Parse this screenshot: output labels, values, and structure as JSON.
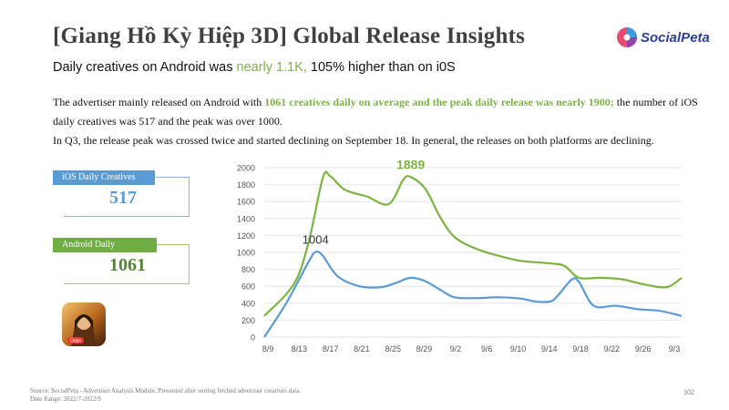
{
  "header": {
    "title": "[Giang Hồ Kỳ Hiệp 3D] Global Release Insights",
    "logo_text": "SocialPeta"
  },
  "subtitle": {
    "before": "Daily creatives on Android was ",
    "highlight": "nearly 1.1K,",
    "after": " 105% higher than on i0S"
  },
  "description": {
    "line1_before": "The advertiser mainly released on Android with ",
    "line1_highlight": "1061 creatives daily on average and the peak daily release was nearly 1900;",
    "line1_after": " the number of iOS daily creatives was 517 and the peak was over 1000.",
    "line2": "In Q3, the release peak was crossed twice and started declining on September 18. In general, the releases on both platforms are declining."
  },
  "cards": {
    "ios": {
      "label": "iOS Daily Creatives",
      "value": "517"
    },
    "android": {
      "label": "Android Daily Creatives",
      "value": "1061"
    }
  },
  "game_icon": {
    "name": "game-icon",
    "badge": "Oops"
  },
  "colors": {
    "ios": "#5b9bd5",
    "android": "#7cb342",
    "grid": "#e6e6e6"
  },
  "chart_data": {
    "type": "line",
    "title": "",
    "xlabel": "",
    "ylabel": "",
    "ylim": [
      0,
      2000
    ],
    "yticks": [
      "0",
      "200",
      "400",
      "600",
      "800",
      "1000",
      "1200",
      "1400",
      "1600",
      "1800",
      "2000"
    ],
    "x_index_range": [
      0,
      57
    ],
    "xtick_labels": [
      "8/9",
      "8/13",
      "8/17",
      "8/21",
      "8/25",
      "8/29",
      "9/2",
      "9/6",
      "9/10",
      "9/14",
      "9/18",
      "9/22",
      "9/26",
      "9/3"
    ],
    "series": [
      {
        "name": "Android",
        "color": "#7cb342",
        "points": [
          [
            0,
            250
          ],
          [
            4,
            620
          ],
          [
            6,
            1100
          ],
          [
            8,
            1880
          ],
          [
            9,
            1900
          ],
          [
            11,
            1740
          ],
          [
            14,
            1660
          ],
          [
            17,
            1570
          ],
          [
            19,
            1860
          ],
          [
            20,
            1889
          ],
          [
            22,
            1750
          ],
          [
            24,
            1420
          ],
          [
            26,
            1180
          ],
          [
            29,
            1040
          ],
          [
            32,
            960
          ],
          [
            35,
            900
          ],
          [
            39,
            870
          ],
          [
            41,
            840
          ],
          [
            43,
            700
          ],
          [
            46,
            700
          ],
          [
            49,
            680
          ],
          [
            52,
            620
          ],
          [
            55,
            590
          ],
          [
            57,
            700
          ]
        ],
        "label": {
          "text": "1889",
          "x": 20,
          "y": 1889
        }
      },
      {
        "name": "iOS",
        "color": "#5b9bd5",
        "points": [
          [
            0,
            0
          ],
          [
            3,
            400
          ],
          [
            6,
            880
          ],
          [
            7,
            1004
          ],
          [
            8,
            960
          ],
          [
            10,
            720
          ],
          [
            13,
            600
          ],
          [
            16,
            590
          ],
          [
            18,
            640
          ],
          [
            20,
            700
          ],
          [
            22,
            660
          ],
          [
            24,
            560
          ],
          [
            26,
            470
          ],
          [
            29,
            460
          ],
          [
            32,
            470
          ],
          [
            35,
            455
          ],
          [
            37,
            420
          ],
          [
            39,
            420
          ],
          [
            40,
            480
          ],
          [
            42,
            680
          ],
          [
            43,
            650
          ],
          [
            45,
            370
          ],
          [
            48,
            370
          ],
          [
            51,
            330
          ],
          [
            54,
            310
          ],
          [
            57,
            250
          ]
        ],
        "label": {
          "text": "1004",
          "x": 7,
          "y": 1004
        }
      }
    ]
  },
  "footer": {
    "source": "Source: SocialPeta - Advertiser Analysis Module. Presented after sorting fetched advertiser creatives data.",
    "date_range": "Date Range: 2022/7-2022/9",
    "page_number": "102"
  }
}
